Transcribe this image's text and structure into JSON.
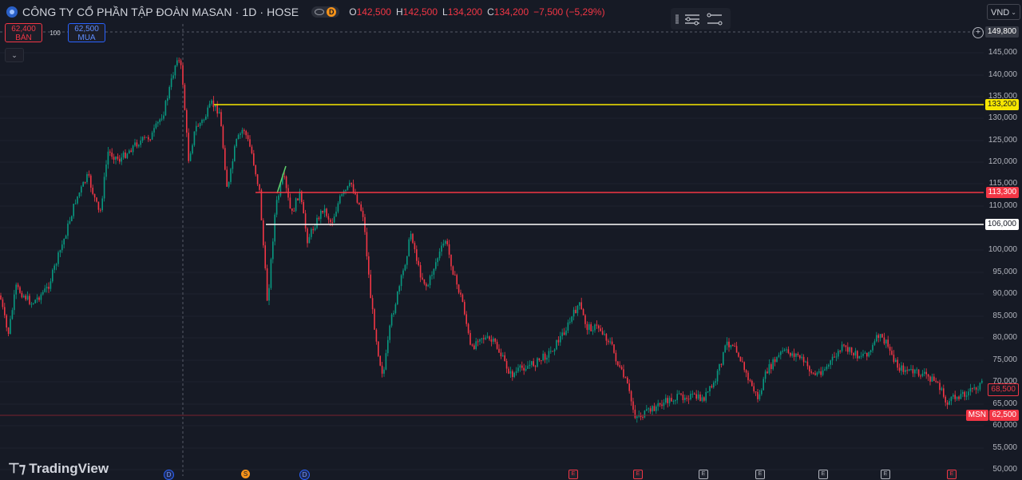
{
  "header": {
    "title": "CÔNG TY CỔ PHẦN TẬP ĐOÀN MASAN · 1D · HOSE",
    "badge": "D",
    "ohlc": [
      {
        "k": "O",
        "v": "142,500"
      },
      {
        "k": "H",
        "v": "142,500"
      },
      {
        "k": "L",
        "v": "134,200"
      },
      {
        "k": "C",
        "v": "134,200"
      }
    ],
    "change": "−7,500 (−5,29%)"
  },
  "trade": {
    "sell_price": "62,400",
    "sell_label": "BÁN",
    "spread": "100",
    "buy_price": "62,500",
    "buy_label": "MUA"
  },
  "currency": "VND",
  "axis": {
    "ticks": [
      "145,000",
      "140,000",
      "135,000",
      "130,000",
      "125,000",
      "120,000",
      "115,000",
      "110,000",
      "105,000",
      "100,000",
      "95,000",
      "90,000",
      "85,000",
      "80,000",
      "75,000",
      "70,000",
      "65,000",
      "60,000",
      "55,000",
      "50,000"
    ],
    "crosshair_price": "149,800",
    "levels": [
      {
        "label": "133,200",
        "color": "#f7e600"
      },
      {
        "label": "113,300",
        "color": "#f23645"
      },
      {
        "label": "106,000",
        "color": "#ffffff"
      }
    ],
    "last_price": "68,500",
    "symbol": "MSN",
    "bid_price": "62,500"
  },
  "markers": {
    "dividend": [
      "D",
      "D"
    ],
    "split": "S",
    "earnings": [
      "E",
      "E",
      "E",
      "E",
      "E",
      "E",
      "E"
    ]
  },
  "brand": "TradingView",
  "colors": {
    "background": "#161a25",
    "up": "#089981",
    "down": "#f23645"
  }
}
